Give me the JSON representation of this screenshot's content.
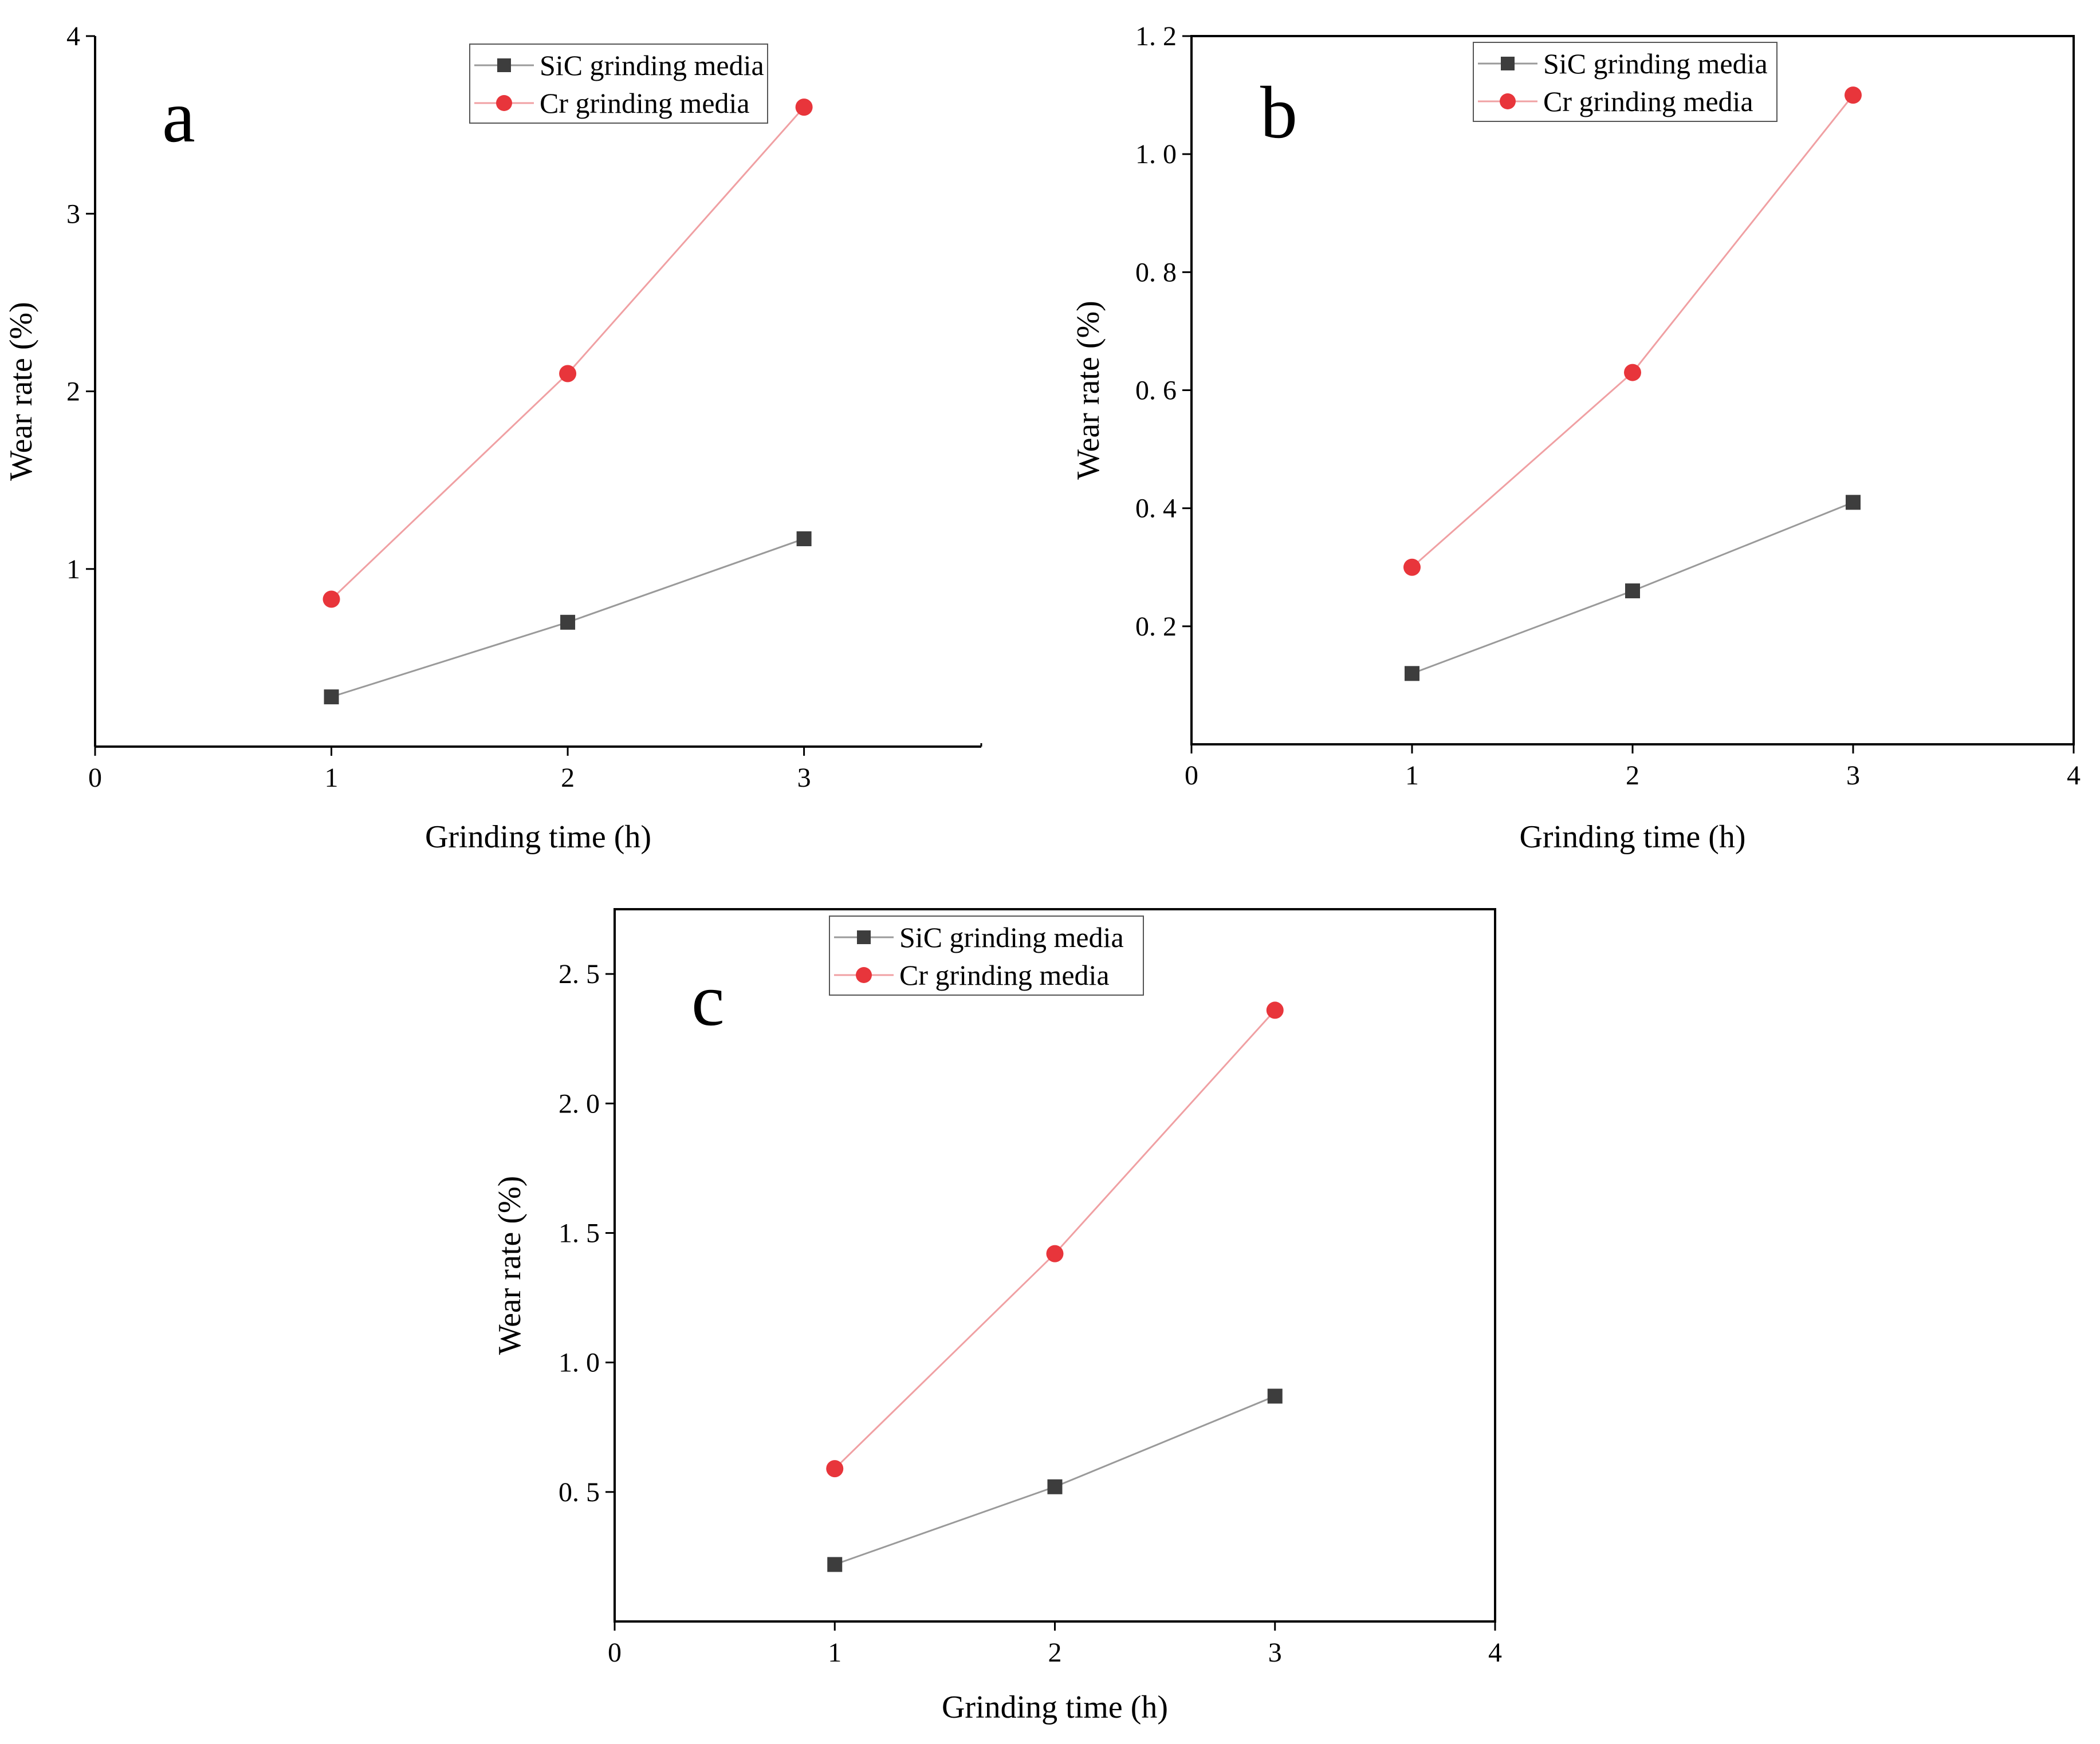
{
  "colors": {
    "sic": "#3d3d3d",
    "sic_line": "#9a9a9a",
    "cr": "#e8353b",
    "cr_line": "#f0a0a3",
    "axis": "#000000",
    "background": "#ffffff"
  },
  "chart_data": [
    {
      "type": "line",
      "panel_label": "a",
      "xlabel": "Grinding time (h)",
      "ylabel": "Wear rate (%)",
      "xlim": [
        0,
        3.75
      ],
      "ylim": [
        0,
        4
      ],
      "xticks": [
        "0",
        "1",
        "2",
        "3"
      ],
      "yticks": [
        "1",
        "2",
        "3",
        "4"
      ],
      "legend_position": "top-right",
      "series": [
        {
          "name": "SiC grinding media",
          "marker": "square",
          "x": [
            1,
            2,
            3
          ],
          "values": [
            0.28,
            0.7,
            1.17
          ]
        },
        {
          "name": "Cr grinding media",
          "marker": "circle",
          "x": [
            1,
            2,
            3
          ],
          "values": [
            0.83,
            2.1,
            3.6
          ]
        }
      ]
    },
    {
      "type": "line",
      "panel_label": "b",
      "xlabel": "Grinding time (h)",
      "ylabel": "Wear rate (%)",
      "xlim": [
        0,
        4
      ],
      "ylim": [
        0,
        1.2
      ],
      "xticks": [
        "0",
        "1",
        "2",
        "3",
        "4"
      ],
      "yticks": [
        "0. 2",
        "0. 4",
        "0. 6",
        "0. 8",
        "1. 0",
        "1. 2"
      ],
      "legend_position": "top-center",
      "series": [
        {
          "name": "SiC grinding media",
          "marker": "square",
          "x": [
            1,
            2,
            3
          ],
          "values": [
            0.12,
            0.26,
            0.41
          ]
        },
        {
          "name": "Cr grinding media",
          "marker": "circle",
          "x": [
            1,
            2,
            3
          ],
          "values": [
            0.3,
            0.63,
            1.1
          ]
        }
      ]
    },
    {
      "type": "line",
      "panel_label": "c",
      "xlabel": "Grinding time (h)",
      "ylabel": "Wear rate (%)",
      "xlim": [
        0,
        4
      ],
      "ylim": [
        0,
        2.75
      ],
      "xticks": [
        "0",
        "1",
        "2",
        "3",
        "4"
      ],
      "yticks": [
        "0. 5",
        "1. 0",
        "1. 5",
        "2. 0",
        "2. 5"
      ],
      "legend_position": "top-center",
      "series": [
        {
          "name": "SiC grinding media",
          "marker": "square",
          "x": [
            1,
            2,
            3
          ],
          "values": [
            0.22,
            0.52,
            0.87
          ]
        },
        {
          "name": "Cr grinding media",
          "marker": "circle",
          "x": [
            1,
            2,
            3
          ],
          "values": [
            0.59,
            1.42,
            2.36
          ]
        }
      ]
    }
  ]
}
